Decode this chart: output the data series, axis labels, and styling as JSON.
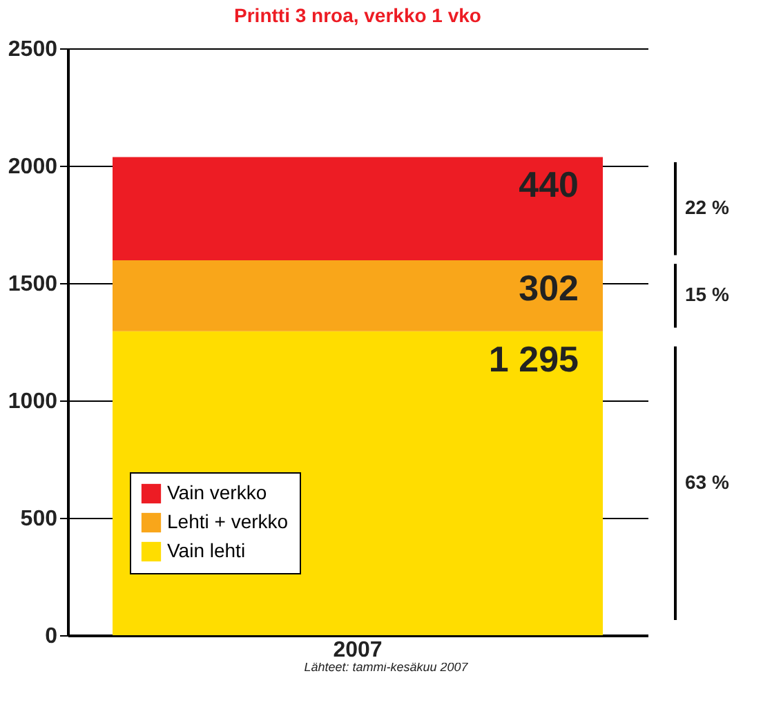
{
  "chart_data": {
    "type": "bar",
    "title": "Printti 3 nroa, verkko 1 vko",
    "categories": [
      "2007"
    ],
    "stacked": true,
    "series": [
      {
        "name": "Vain lehti",
        "color": "#ffdd00",
        "values": [
          1295
        ],
        "value_labels": [
          "1 295"
        ]
      },
      {
        "name": "Lehti + verkko",
        "color": "#f9a61a",
        "values": [
          302
        ],
        "value_labels": [
          "302"
        ]
      },
      {
        "name": "Vain verkko",
        "color": "#ed1c24",
        "values": [
          440
        ],
        "value_labels": [
          "440"
        ]
      }
    ],
    "ylim": [
      0,
      2500
    ],
    "yticks": [
      0,
      500,
      1000,
      1500,
      2000,
      2500
    ],
    "grid": "y",
    "legend": "bottom left",
    "annotations": [
      "22 %",
      "15 %",
      "63 %",
      "Lähteet: tammi-kesäkuu 2007"
    ]
  }
}
